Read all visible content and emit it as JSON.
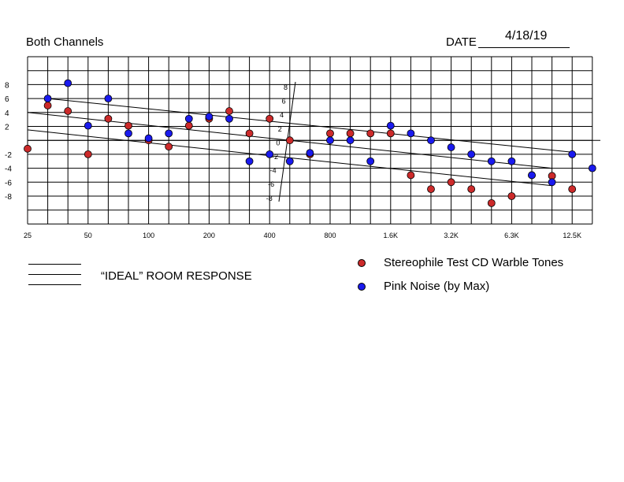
{
  "header": {
    "title": "Both Channels",
    "date_label": "DATE",
    "date_value": "4/18/19"
  },
  "legend": {
    "ideal_label": "“IDEAL” ROOM RESPONSE",
    "items": [
      {
        "label": "Stereophile Test CD Warble Tones",
        "color": "#cc2a2a"
      },
      {
        "label": "Pink Noise (by Max)",
        "color": "#1a1aee"
      }
    ]
  },
  "chart_data": {
    "type": "scatter",
    "x_tick_labels": [
      "25",
      "50",
      "100",
      "200",
      "400",
      "800",
      "1.6K",
      "3.2K",
      "6.3K",
      "12.5K"
    ],
    "x_categories": [
      "25",
      "31.5",
      "40",
      "50",
      "63",
      "80",
      "100",
      "125",
      "160",
      "200",
      "250",
      "315",
      "400",
      "500",
      "630",
      "800",
      "1K",
      "1.25K",
      "1.6K",
      "2K",
      "2.5K",
      "3.2K",
      "4K",
      "5K",
      "6.3K",
      "8K",
      "10K",
      "12.5K",
      "16K"
    ],
    "y_tick_labels": [
      "8",
      "6",
      "4",
      "2",
      "-2",
      "-4",
      "-6",
      "-8"
    ],
    "inner_y_tick_labels": [
      "8",
      "6",
      "4",
      "2",
      "0",
      "-2",
      "-4",
      "-6",
      "-8"
    ],
    "ylim": [
      -10,
      10
    ],
    "series": [
      {
        "name": "Stereophile Test CD Warble Tones",
        "color": "#cc2a2a",
        "points": [
          [
            "25",
            -1.2
          ],
          [
            "31.5",
            5
          ],
          [
            "40",
            4.2
          ],
          [
            "50",
            -2
          ],
          [
            "63",
            3.1
          ],
          [
            "80",
            2.1
          ],
          [
            "100",
            0
          ],
          [
            "125",
            -0.9
          ],
          [
            "160",
            2.1
          ],
          [
            "200",
            3.1
          ],
          [
            "250",
            4.2
          ],
          [
            "315",
            1
          ],
          [
            "400",
            3.1
          ],
          [
            "500",
            0
          ],
          [
            "630",
            -2
          ],
          [
            "800",
            1
          ],
          [
            "1K",
            1
          ],
          [
            "1.25K",
            1
          ],
          [
            "1.6K",
            1
          ],
          [
            "2K",
            -5
          ],
          [
            "2.5K",
            -7
          ],
          [
            "3.2K",
            -6
          ],
          [
            "4K",
            -7
          ],
          [
            "5K",
            -9
          ],
          [
            "6.3K",
            -8
          ],
          [
            "8K",
            -5
          ],
          [
            "10K",
            -5.1
          ],
          [
            "12.5K",
            -7
          ]
        ]
      },
      {
        "name": "Pink Noise (by Max)",
        "color": "#1a1aee",
        "points": [
          [
            "31.5",
            6
          ],
          [
            "40",
            8.2
          ],
          [
            "50",
            2.1
          ],
          [
            "63",
            6
          ],
          [
            "80",
            1
          ],
          [
            "100",
            0.3
          ],
          [
            "125",
            1
          ],
          [
            "160",
            3.1
          ],
          [
            "200",
            3.4
          ],
          [
            "250",
            3.1
          ],
          [
            "315",
            -3
          ],
          [
            "400",
            -2
          ],
          [
            "500",
            -3
          ],
          [
            "630",
            -1.8
          ],
          [
            "800",
            0
          ],
          [
            "1K",
            0
          ],
          [
            "1.25K",
            -3
          ],
          [
            "1.6K",
            2.1
          ],
          [
            "2K",
            1
          ],
          [
            "2.5K",
            0
          ],
          [
            "3.2K",
            -1
          ],
          [
            "4K",
            -2
          ],
          [
            "5K",
            -3
          ],
          [
            "6.3K",
            -3
          ],
          [
            "8K",
            -5
          ],
          [
            "10K",
            -6
          ],
          [
            "12.5K",
            -2
          ],
          [
            "16K",
            -4
          ]
        ]
      }
    ],
    "reference_lines": [
      {
        "from": [
          "31.5",
          6
        ],
        "to": [
          "12.5K",
          -1.7
        ]
      },
      {
        "from": [
          "25",
          4
        ],
        "to": [
          "10K",
          -4
        ]
      },
      {
        "from": [
          "25",
          1.5
        ],
        "to": [
          "10K",
          -6.5
        ]
      }
    ]
  }
}
